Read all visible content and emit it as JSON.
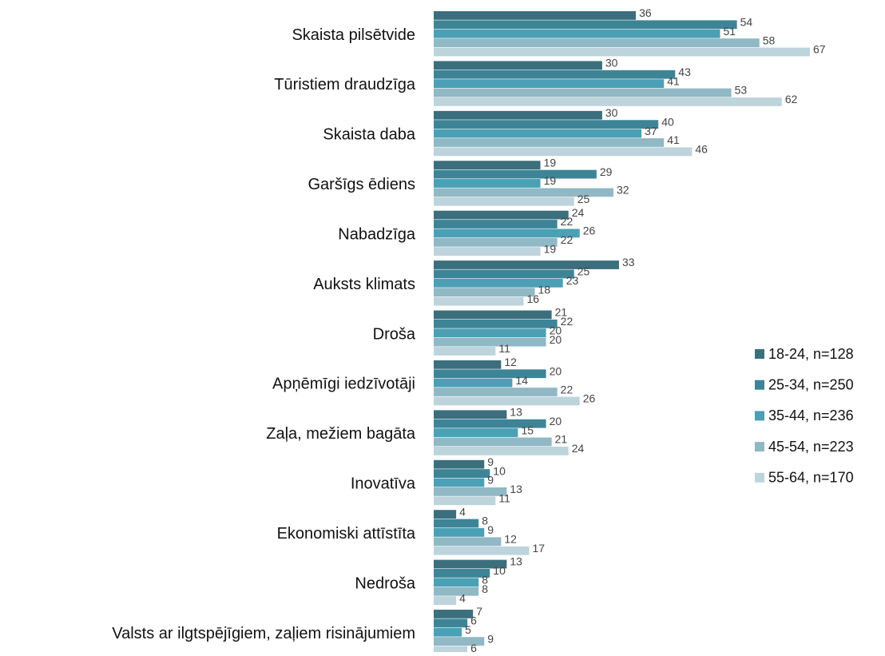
{
  "chart_data": {
    "type": "hbar",
    "categories": [
      "Skaista pilsētvide",
      "Tūristiem draudzīga",
      "Skaista daba",
      "Garšīgs ēdiens",
      "Nabadzīga",
      "Auksts klimats",
      "Droša",
      "Apņēmīgi iedzīvotāji",
      "Zaļa, mežiem bagāta",
      "Inovatīva",
      "Ekonomiski attīstīta",
      "Nedroša",
      "Valsts ar ilgtspējīgiem, zaļiem risinājumiem"
    ],
    "series": [
      {
        "name": "18-24, n=128",
        "color": "#3b6f7d",
        "values": [
          36,
          30,
          30,
          19,
          24,
          33,
          21,
          12,
          13,
          9,
          4,
          13,
          7
        ]
      },
      {
        "name": "25-34, n=250",
        "color": "#3e8497",
        "values": [
          54,
          43,
          40,
          29,
          22,
          25,
          22,
          20,
          20,
          10,
          8,
          10,
          6
        ]
      },
      {
        "name": "35-44, n=236",
        "color": "#4ba0b5",
        "values": [
          51,
          41,
          37,
          19,
          26,
          23,
          20,
          14,
          15,
          9,
          9,
          8,
          5
        ]
      },
      {
        "name": "45-54, n=223",
        "color": "#90b8c5",
        "values": [
          58,
          53,
          41,
          32,
          22,
          18,
          20,
          22,
          21,
          13,
          12,
          8,
          9
        ]
      },
      {
        "name": "55-64, n=170",
        "color": "#bdd4dc",
        "values": [
          67,
          62,
          46,
          25,
          19,
          16,
          11,
          26,
          24,
          11,
          17,
          4,
          6
        ]
      }
    ],
    "legend": "right"
  }
}
